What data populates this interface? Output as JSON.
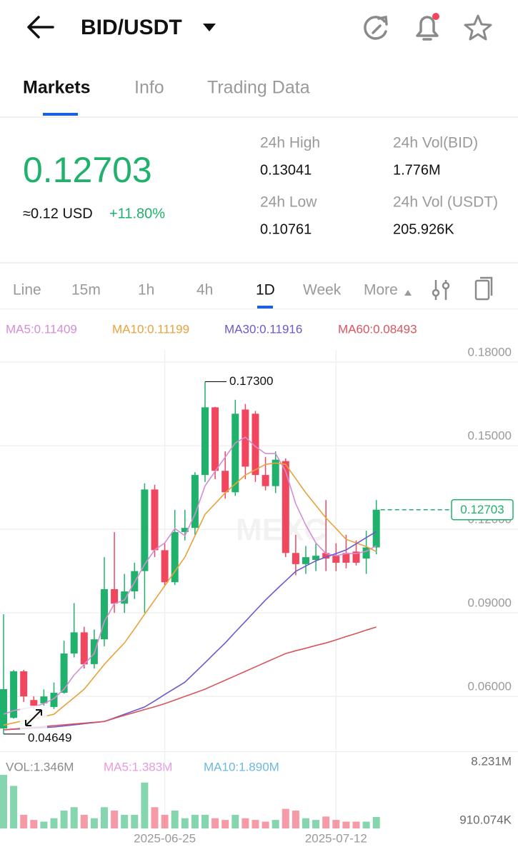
{
  "header": {
    "pair": "BID/USDT"
  },
  "tabs": [
    "Markets",
    "Info",
    "Trading Data"
  ],
  "price": {
    "last": "0.12703",
    "usd": "≈0.12 USD",
    "change": "+11.80%"
  },
  "stats": [
    {
      "label": "24h High",
      "value": "0.13041"
    },
    {
      "label": "24h Low",
      "value": "0.10761"
    },
    {
      "label": "24h Vol(BID)",
      "value": "1.776M"
    },
    {
      "label": "24h Vol (USDT)",
      "value": "205.926K"
    }
  ],
  "intervals": [
    "Line",
    "15m",
    "1h",
    "4h",
    "1D",
    "Week",
    "More"
  ],
  "ma_legend": [
    {
      "label": "MA5:0.11409",
      "color": "#d48ed6"
    },
    {
      "label": "MA10:0.11199",
      "color": "#e8a23c"
    },
    {
      "label": "MA30:0.11916",
      "color": "#6a5acd"
    },
    {
      "label": "MA60:0.08493",
      "color": "#d9545e"
    }
  ],
  "vol_legend": [
    {
      "label": "VOL:1.346M",
      "color": "#8a8a8a"
    },
    {
      "label": "MA5:1.383M",
      "color": "#e59ae0"
    },
    {
      "label": "MA10:1.890M",
      "color": "#6cb8e0"
    }
  ],
  "watermark": "MEXC",
  "chart_data": {
    "type": "candlestick",
    "up_color": "#20b26c",
    "down_color": "#f0475e",
    "categories": [
      null,
      null,
      null,
      null,
      null,
      null,
      null,
      null,
      null,
      null,
      null,
      null,
      null,
      null,
      null,
      null,
      "2025-06-25",
      null,
      null,
      null,
      null,
      null,
      null,
      null,
      null,
      null,
      null,
      null,
      null,
      null,
      null,
      null,
      null,
      "2025-07-12",
      null,
      null,
      null,
      null
    ],
    "open": [
      0.0485,
      0.0523,
      0.069,
      0.0587,
      0.0575,
      0.0562,
      0.0613,
      0.0754,
      0.083,
      0.0716,
      0.0805,
      0.0985,
      0.0933,
      0.0977,
      0.105,
      0.1343,
      0.1125,
      0.101,
      0.119,
      0.1205,
      0.1395,
      0.1638,
      0.141,
      0.1333,
      0.163,
      0.1615,
      0.1395,
      0.1355,
      0.1445,
      0.1115,
      0.1075,
      0.109,
      0.1115,
      0.1105,
      0.1115,
      0.112,
      0.1095,
      0.1135
    ],
    "high": [
      0.0895,
      0.0695,
      0.0695,
      0.06,
      0.0625,
      0.065,
      0.08,
      0.0935,
      0.085,
      0.084,
      0.11,
      0.119,
      0.104,
      0.108,
      0.1365,
      0.136,
      0.115,
      0.127,
      0.127,
      0.1405,
      0.173,
      0.164,
      0.148,
      0.1665,
      0.165,
      0.1625,
      0.146,
      0.148,
      0.1455,
      0.118,
      0.114,
      0.115,
      0.1305,
      0.115,
      0.118,
      0.116,
      0.1195,
      0.1305
    ],
    "low": [
      0.04649,
      0.052,
      0.058,
      0.0555,
      0.0565,
      0.0555,
      0.061,
      0.074,
      0.07,
      0.07,
      0.078,
      0.09,
      0.09,
      0.095,
      0.09,
      0.11,
      0.1,
      0.1,
      0.116,
      0.118,
      0.137,
      0.138,
      0.131,
      0.132,
      0.138,
      0.137,
      0.134,
      0.133,
      0.11,
      0.1035,
      0.104,
      0.105,
      0.105,
      0.105,
      0.106,
      0.107,
      0.104,
      0.111
    ],
    "close": [
      0.0626,
      0.069,
      0.06,
      0.0562,
      0.06,
      0.0613,
      0.0754,
      0.083,
      0.0715,
      0.0805,
      0.0985,
      0.0933,
      0.0977,
      0.105,
      0.1343,
      0.1125,
      0.101,
      0.119,
      0.1205,
      0.1395,
      0.1638,
      0.141,
      0.1333,
      0.1615,
      0.1425,
      0.1395,
      0.1355,
      0.145,
      0.1115,
      0.1075,
      0.11,
      0.1105,
      0.1095,
      0.108,
      0.108,
      0.108,
      0.1135,
      0.12703
    ],
    "ma": [
      {
        "name": "MA5",
        "color": "#d48ed6",
        "values": [
          0.0536,
          0.0549,
          0.0556,
          0.0562,
          0.0574,
          0.0592,
          0.0626,
          0.0677,
          0.0715,
          0.0754,
          0.0869,
          0.0933,
          0.0946,
          0.101,
          0.1074,
          0.1126,
          0.1151,
          0.1203,
          0.1177,
          0.1254,
          0.1356,
          0.1408,
          0.1459,
          0.151,
          0.1531,
          0.1497,
          0.1472,
          0.1472,
          0.1408,
          0.1292,
          0.1215,
          0.1151,
          0.1113,
          0.1105,
          0.1113,
          0.1113,
          0.1121,
          0.1141
        ]
      },
      {
        "name": "MA10",
        "color": "#e8a23c",
        "values": [
          0.0497,
          0.0505,
          0.0513,
          0.052,
          0.0528,
          0.0536,
          0.0566,
          0.0596,
          0.0626,
          0.067,
          0.0715,
          0.0754,
          0.0792,
          0.0843,
          0.0895,
          0.0946,
          0.0997,
          0.1049,
          0.11,
          0.1177,
          0.1254,
          0.1292,
          0.1331,
          0.1363,
          0.1395,
          0.1414,
          0.1433,
          0.1438,
          0.1433,
          0.1382,
          0.1331,
          0.1286,
          0.1241,
          0.1203,
          0.1164,
          0.1151,
          0.1138,
          0.112
        ]
      },
      {
        "name": "MA30",
        "color": "#6a5acd",
        "values": [
          0.048,
          0.0482,
          0.0484,
          0.0486,
          0.0488,
          0.049,
          0.0494,
          0.0498,
          0.0502,
          0.0506,
          0.051,
          0.0523,
          0.0536,
          0.0549,
          0.0562,
          0.0584,
          0.0607,
          0.0629,
          0.0651,
          0.0686,
          0.0721,
          0.0757,
          0.0792,
          0.0831,
          0.0869,
          0.0908,
          0.0946,
          0.0981,
          0.1015,
          0.1049,
          0.1068,
          0.1087,
          0.11,
          0.1113,
          0.1126,
          0.1148,
          0.117,
          0.1192
        ]
      },
      {
        "name": "MA60",
        "color": "#d9545e",
        "values": [
          0.048,
          0.0483,
          0.0486,
          0.0489,
          0.0492,
          0.0495,
          0.0498,
          0.0501,
          0.0504,
          0.0507,
          0.051,
          0.0521,
          0.0532,
          0.0542,
          0.0553,
          0.0563,
          0.0574,
          0.0587,
          0.06,
          0.0613,
          0.0626,
          0.0642,
          0.0658,
          0.0674,
          0.069,
          0.0706,
          0.0722,
          0.0738,
          0.0754,
          0.0764,
          0.0773,
          0.0783,
          0.0792,
          0.0803,
          0.0815,
          0.0826,
          0.0838,
          0.0849
        ]
      }
    ],
    "ylim": [
      0.0408,
      0.1844
    ],
    "yticks": [
      {
        "value": 0.18,
        "label": "0.18000"
      },
      {
        "value": 0.15,
        "label": "0.15000"
      },
      {
        "value": 0.12,
        "label": "0.12000"
      },
      {
        "value": 0.09,
        "label": "0.09000"
      },
      {
        "value": 0.06,
        "label": "0.06000"
      }
    ],
    "annotations": [
      {
        "value": 0.173,
        "label": "0.17300"
      },
      {
        "value": 0.04649,
        "label": "0.04649"
      }
    ],
    "last_price": {
      "value": 0.12703,
      "label": "0.12703"
    },
    "volume": {
      "values": [
        6300000,
        5000000,
        1600000,
        1000000,
        800000,
        1200000,
        2100000,
        2500000,
        1600000,
        1200000,
        2500000,
        2100000,
        1600000,
        1600000,
        5400000,
        2500000,
        1600000,
        2100000,
        1200000,
        1600000,
        1600000,
        1200000,
        1000000,
        1600000,
        1200000,
        1000000,
        800000,
        1000000,
        2300000,
        2100000,
        1200000,
        1000000,
        1400000,
        1000000,
        800000,
        800000,
        800000,
        1346000
      ],
      "ylim": [
        0,
        8231000
      ],
      "yticks": [
        {
          "value": 8231000,
          "label": "8.231M"
        },
        {
          "value": 910074,
          "label": "910.074K"
        }
      ]
    }
  }
}
